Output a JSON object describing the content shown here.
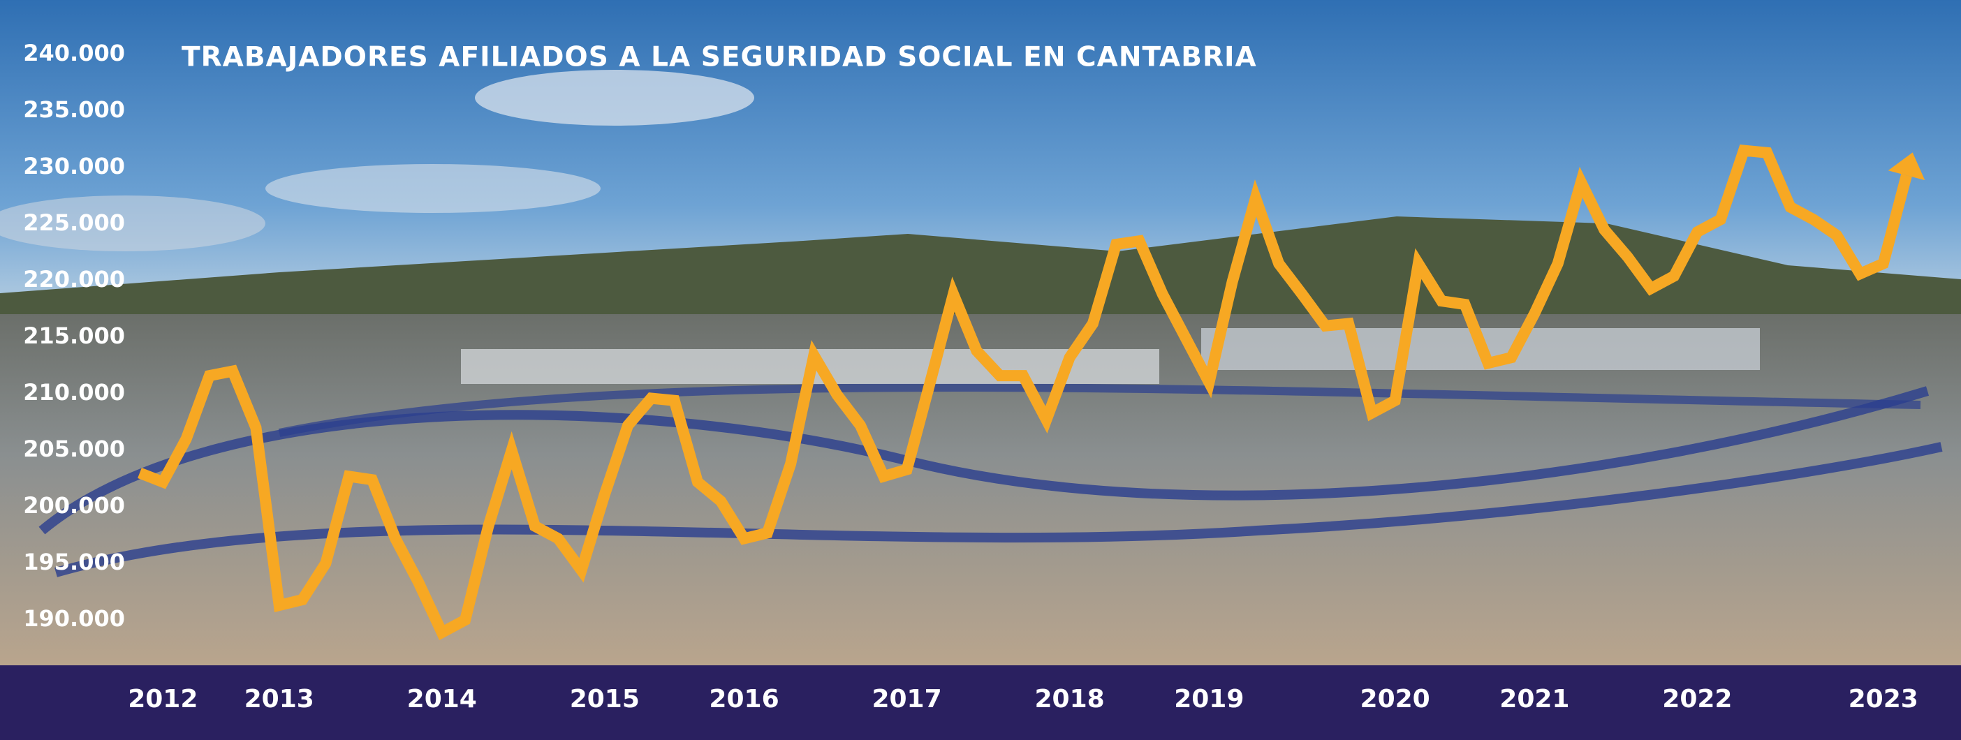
{
  "chart_data": {
    "type": "line",
    "title": "TRABAJADORES AFILIADOS A LA SEGURIDAD SOCIAL EN CANTABRIA",
    "categories": [
      null,
      "2012",
      null,
      null,
      null,
      null,
      "2013",
      null,
      null,
      null,
      null,
      null,
      null,
      "2014",
      null,
      null,
      null,
      null,
      null,
      null,
      "2015",
      null,
      null,
      null,
      null,
      null,
      "2016",
      null,
      null,
      null,
      null,
      null,
      null,
      "2017",
      null,
      null,
      null,
      null,
      null,
      null,
      "2018",
      null,
      null,
      null,
      null,
      null,
      "2019",
      null,
      null,
      null,
      null,
      null,
      null,
      null,
      "2020",
      null,
      null,
      null,
      null,
      null,
      "2021",
      null,
      null,
      null,
      null,
      null,
      null,
      "2022",
      null,
      null,
      null,
      null,
      null,
      null,
      null,
      "2023",
      null
    ],
    "values": [
      203000,
      202200,
      206000,
      211600,
      212000,
      207000,
      191300,
      191800,
      195000,
      202700,
      202400,
      197200,
      193300,
      188900,
      190000,
      198300,
      205000,
      198300,
      197200,
      194400,
      201100,
      207200,
      209600,
      209400,
      202200,
      200500,
      197200,
      197700,
      203800,
      213400,
      209900,
      207200,
      202700,
      203300,
      211000,
      218800,
      213800,
      211600,
      211600,
      207700,
      213200,
      216200,
      223200,
      223500,
      218800,
      214900,
      211000,
      219900,
      227300,
      221500,
      218800,
      216000,
      216200,
      208300,
      209400,
      221500,
      218200,
      217900,
      212700,
      213200,
      217100,
      221500,
      228700,
      224500,
      222100,
      219300,
      220400,
      224300,
      225400,
      231500,
      231300,
      226500,
      225400,
      224000,
      220600,
      221500,
      229300
    ],
    "color": "#f7a823",
    "ylim": [
      186000,
      244800
    ],
    "yticks": [
      {
        "value": 190000,
        "label": "190.000"
      },
      {
        "value": 195000,
        "label": "195.000"
      },
      {
        "value": 200000,
        "label": "200.000"
      },
      {
        "value": 205000,
        "label": "205.000"
      },
      {
        "value": 210000,
        "label": "210.000"
      },
      {
        "value": 215000,
        "label": "215.000"
      },
      {
        "value": 220000,
        "label": "220.000"
      },
      {
        "value": 225000,
        "label": "225.000"
      },
      {
        "value": 230000,
        "label": "230.000"
      },
      {
        "value": 235000,
        "label": "235.000"
      },
      {
        "value": 240000,
        "label": "240.000"
      }
    ],
    "grid": false
  }
}
